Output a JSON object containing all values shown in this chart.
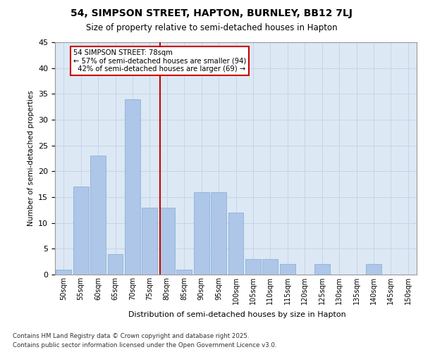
{
  "title1": "54, SIMPSON STREET, HAPTON, BURNLEY, BB12 7LJ",
  "title2": "Size of property relative to semi-detached houses in Hapton",
  "xlabel": "Distribution of semi-detached houses by size in Hapton",
  "ylabel": "Number of semi-detached properties",
  "categories": [
    "50sqm",
    "55sqm",
    "60sqm",
    "65sqm",
    "70sqm",
    "75sqm",
    "80sqm",
    "85sqm",
    "90sqm",
    "95sqm",
    "100sqm",
    "105sqm",
    "110sqm",
    "115sqm",
    "120sqm",
    "125sqm",
    "130sqm",
    "135sqm",
    "140sqm",
    "145sqm",
    "150sqm"
  ],
  "values": [
    1,
    17,
    23,
    4,
    34,
    13,
    13,
    1,
    16,
    16,
    12,
    3,
    3,
    2,
    0,
    2,
    0,
    0,
    2,
    0,
    0
  ],
  "bar_color": "#aec6e8",
  "bar_edge_color": "#7aaed0",
  "grid_color": "#c8d4e8",
  "background_color": "#dde8f5",
  "ref_line_label": "54 SIMPSON STREET: 78sqm",
  "pct_smaller": "57% of semi-detached houses are smaller (94)",
  "pct_larger": "42% of semi-detached houses are larger (69)",
  "annotation_box_color": "#cc0000",
  "ylim": [
    0,
    45
  ],
  "yticks": [
    0,
    5,
    10,
    15,
    20,
    25,
    30,
    35,
    40,
    45
  ],
  "footnote1": "Contains HM Land Registry data © Crown copyright and database right 2025.",
  "footnote2": "Contains public sector information licensed under the Open Government Licence v3.0."
}
